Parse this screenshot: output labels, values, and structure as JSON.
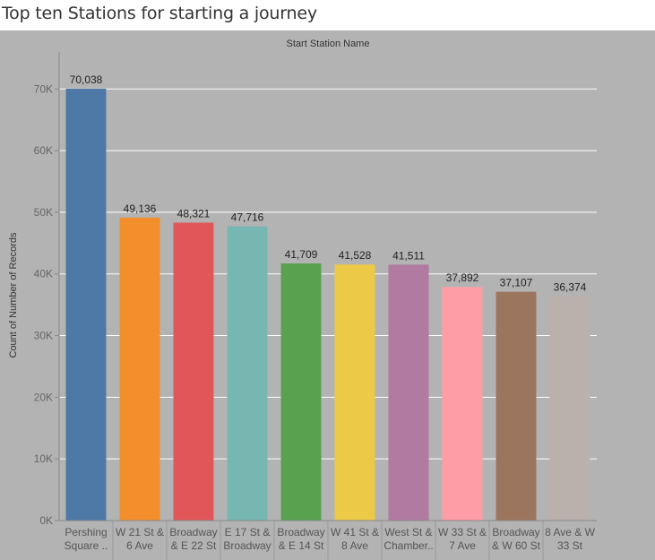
{
  "title": "Top ten Stations for starting a journey",
  "chart_data": {
    "type": "bar",
    "header": "Start Station Name",
    "ylabel": "Count of Number of Records",
    "ylim": [
      0,
      76000
    ],
    "yticks": [
      0,
      10000,
      20000,
      30000,
      40000,
      50000,
      60000,
      70000
    ],
    "ytick_labels": [
      "0K",
      "10K",
      "20K",
      "30K",
      "40K",
      "50K",
      "60K",
      "70K"
    ],
    "grid": true,
    "categories": [
      [
        "Pershing",
        "Square .."
      ],
      [
        "W 21 St &",
        "6 Ave"
      ],
      [
        "Broadway",
        "& E 22 St"
      ],
      [
        "E 17 St &",
        "Broadway"
      ],
      [
        "Broadway",
        "& E 14 St"
      ],
      [
        "W 41 St &",
        "8 Ave"
      ],
      [
        "West St &",
        "Chamber.."
      ],
      [
        "W 33 St &",
        "7 Ave"
      ],
      [
        "Broadway",
        "& W 60 St"
      ],
      [
        "8 Ave & W",
        "33 St"
      ]
    ],
    "values": [
      70038,
      49136,
      48321,
      47716,
      41709,
      41528,
      41511,
      37892,
      37107,
      36374
    ],
    "value_labels": [
      "70,038",
      "49,136",
      "48,321",
      "47,716",
      "41,709",
      "41,528",
      "41,511",
      "37,892",
      "37,107",
      "36,374"
    ],
    "colors": [
      "#4e79a7",
      "#f28e2b",
      "#e15759",
      "#76b7b2",
      "#59a14f",
      "#edc948",
      "#b07aa1",
      "#ff9da7",
      "#9c755f",
      "#bab0ac"
    ],
    "background": "#b3b3b3"
  }
}
